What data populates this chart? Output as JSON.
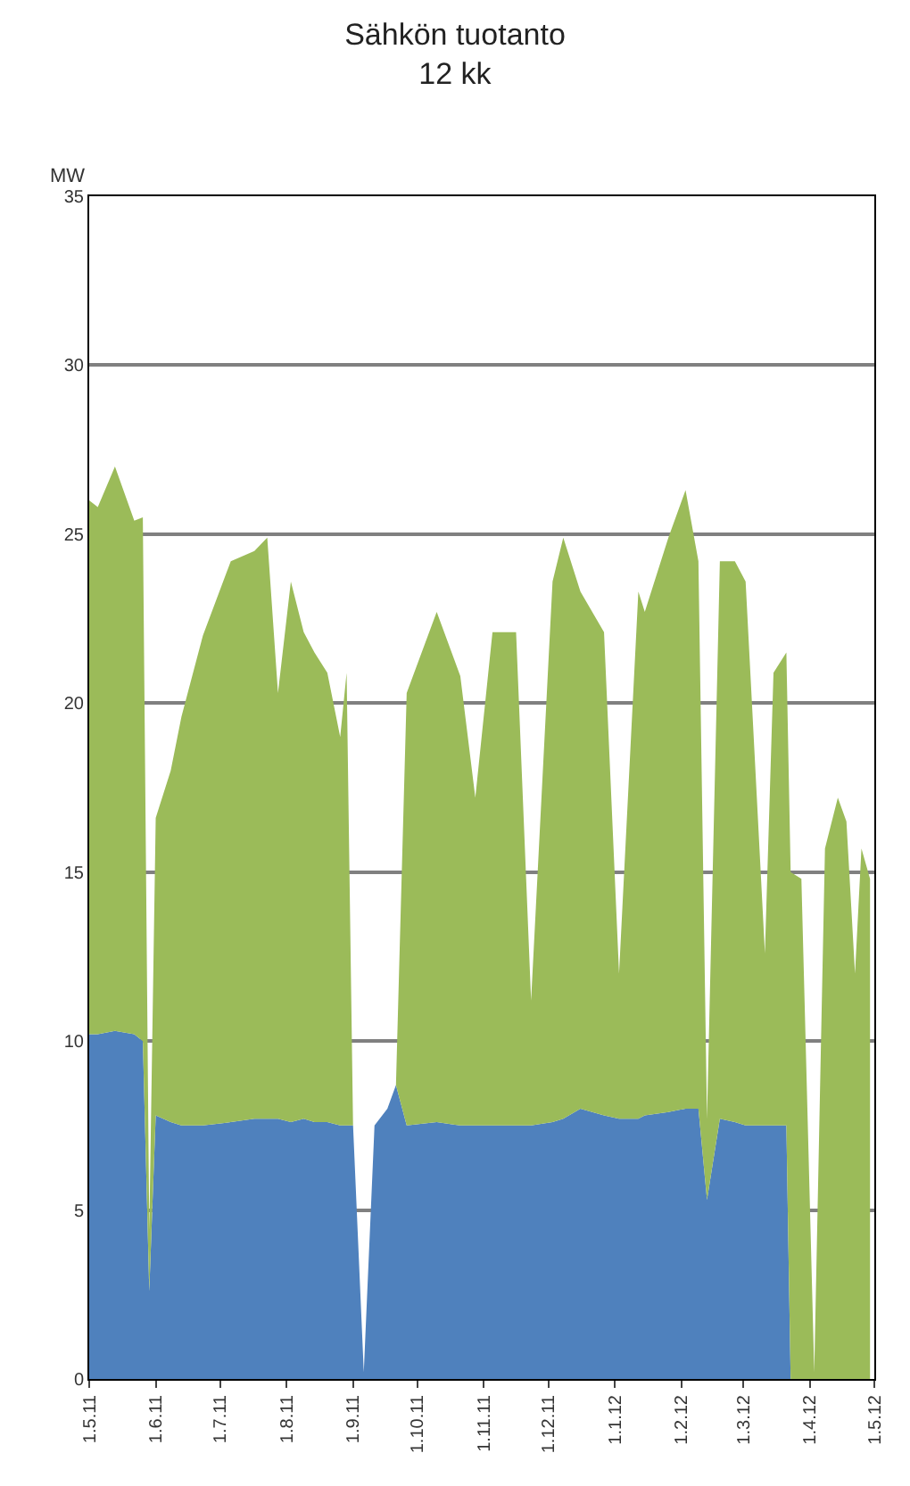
{
  "chart_data": {
    "type": "area",
    "title": "Sähkön tuotanto",
    "subtitle": "12 kk",
    "ylabel": "MW",
    "stacked": true,
    "grid": "y",
    "x": [
      "2011-05-01",
      "2011-05-05",
      "2011-05-13",
      "2011-05-22",
      "2011-05-26",
      "2011-05-29",
      "2011-06-01",
      "2011-06-08",
      "2011-06-13",
      "2011-06-23",
      "2011-07-06",
      "2011-07-17",
      "2011-07-23",
      "2011-07-28",
      "2011-08-03",
      "2011-08-09",
      "2011-08-14",
      "2011-08-20",
      "2011-08-26",
      "2011-08-29",
      "2011-09-01",
      "2011-09-06",
      "2011-09-11",
      "2011-09-17",
      "2011-09-21",
      "2011-09-26",
      "2011-10-10",
      "2011-10-21",
      "2011-10-28",
      "2011-11-05",
      "2011-11-16",
      "2011-11-23",
      "2011-12-03",
      "2011-12-08",
      "2011-12-16",
      "2011-12-27",
      "2012-01-03",
      "2012-01-12",
      "2012-01-15",
      "2012-01-26",
      "2012-02-03",
      "2012-02-09",
      "2012-02-13",
      "2012-02-19",
      "2012-02-26",
      "2012-03-02",
      "2012-03-11",
      "2012-03-15",
      "2012-03-21",
      "2012-03-23",
      "2012-03-28",
      "2012-04-03",
      "2012-04-08",
      "2012-04-14",
      "2012-04-18",
      "2012-04-22",
      "2012-04-25",
      "2012-04-29"
    ],
    "series": [
      {
        "color": "#4f81bd",
        "values": [
          10.2,
          10.2,
          10.3,
          10.2,
          10.0,
          2.6,
          7.8,
          7.6,
          7.5,
          7.5,
          7.6,
          7.7,
          7.7,
          7.7,
          7.6,
          7.7,
          7.6,
          7.6,
          7.5,
          7.5,
          7.5,
          0.2,
          7.5,
          8.0,
          8.7,
          7.5,
          7.6,
          7.5,
          7.5,
          7.5,
          7.5,
          7.5,
          7.6,
          7.7,
          8.0,
          7.8,
          7.7,
          7.7,
          7.8,
          7.9,
          8.0,
          8.0,
          5.3,
          7.7,
          7.6,
          7.5,
          7.5,
          7.5,
          7.5,
          0,
          0,
          0,
          0,
          0,
          0,
          0,
          0,
          0
        ]
      },
      {
        "color": "#9bbb59",
        "values": [
          15.8,
          15.6,
          16.7,
          15.2,
          15.5,
          1.8,
          8.8,
          10.4,
          12.1,
          14.5,
          16.6,
          16.8,
          17.2,
          12.6,
          16.0,
          14.4,
          13.9,
          13.3,
          11.5,
          13.4,
          0,
          0,
          0,
          0,
          0,
          12.8,
          15.1,
          13.3,
          9.7,
          14.6,
          14.6,
          3.7,
          16.0,
          17.2,
          15.3,
          14.3,
          4.3,
          15.6,
          14.9,
          17.0,
          18.3,
          16.2,
          2.4,
          16.5,
          16.6,
          16.1,
          5.1,
          13.4,
          14.0,
          15.0,
          14.8,
          0.2,
          15.7,
          17.2,
          16.5,
          12.0,
          15.7,
          14.8
        ]
      }
    ],
    "xlim": [
      "2011-05-01",
      "2012-05-01"
    ],
    "xticks": [
      {
        "value": "2011-05-01",
        "label": "1.5.11"
      },
      {
        "value": "2011-06-01",
        "label": "1.6.11"
      },
      {
        "value": "2011-07-01",
        "label": "1.7.11"
      },
      {
        "value": "2011-08-01",
        "label": "1.8.11"
      },
      {
        "value": "2011-09-01",
        "label": "1.9.11"
      },
      {
        "value": "2011-10-01",
        "label": "1.10.11"
      },
      {
        "value": "2011-11-01",
        "label": "1.11.11"
      },
      {
        "value": "2011-12-01",
        "label": "1.12.11"
      },
      {
        "value": "2012-01-01",
        "label": "1.1.12"
      },
      {
        "value": "2012-02-01",
        "label": "1.2.12"
      },
      {
        "value": "2012-03-01",
        "label": "1.3.12"
      },
      {
        "value": "2012-04-01",
        "label": "1.4.12"
      },
      {
        "value": "2012-05-01",
        "label": "1.5.12"
      }
    ],
    "ylim": [
      0,
      35
    ],
    "yticks": [
      0,
      5,
      10,
      15,
      20,
      25,
      30,
      35
    ]
  }
}
